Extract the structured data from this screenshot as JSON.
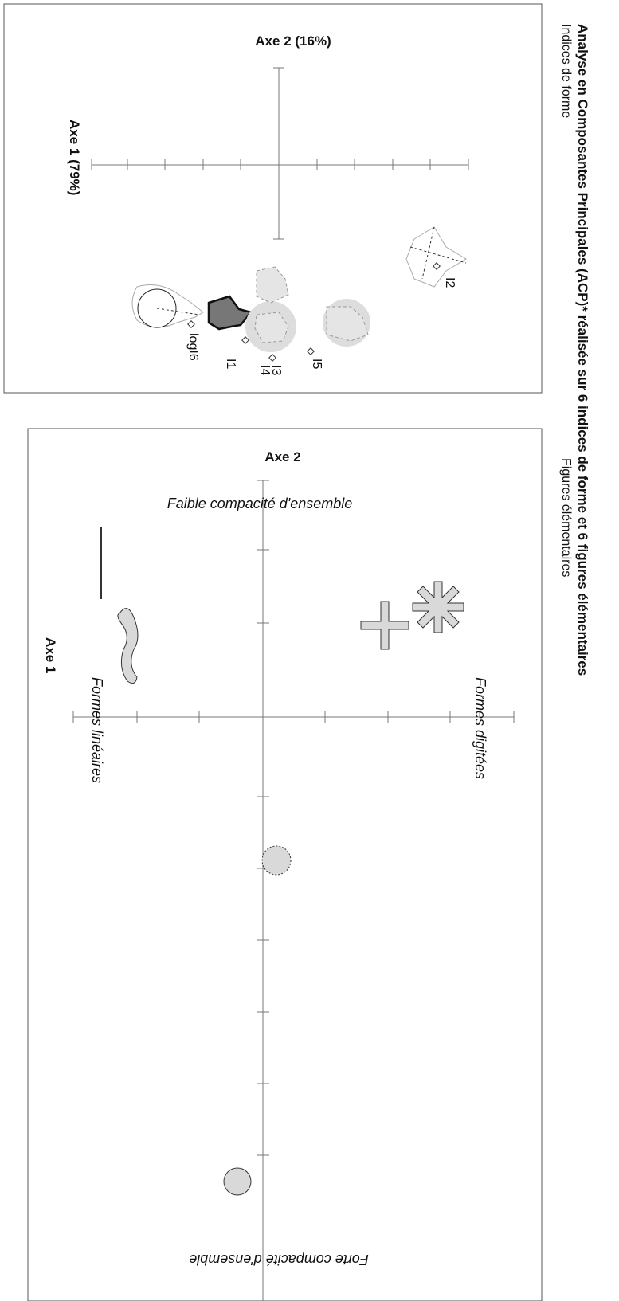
{
  "title": "Analyse en Composantes Principales (ACP)* réalisée sur 6 indices de forme et 6 figures élémentaires",
  "panels": [
    {
      "subtitle": "Indices de forme",
      "axis_2": "Axe 2 (16%)",
      "axis_1": "Axe 1 (79%)",
      "point_labels": [
        "I2",
        "logI6",
        "I1",
        "I3",
        "I4",
        "I5"
      ]
    },
    {
      "subtitle": "Figures élémentaires",
      "axis_2": "Axe 2",
      "axis_1": "Axe 1",
      "top_label": "Faible  compacité d'ensemble",
      "left_label": "Formes linéaires",
      "right_label": "Formes digitées",
      "bottom_label": "Forte compacité d'ensemble"
    }
  ]
}
